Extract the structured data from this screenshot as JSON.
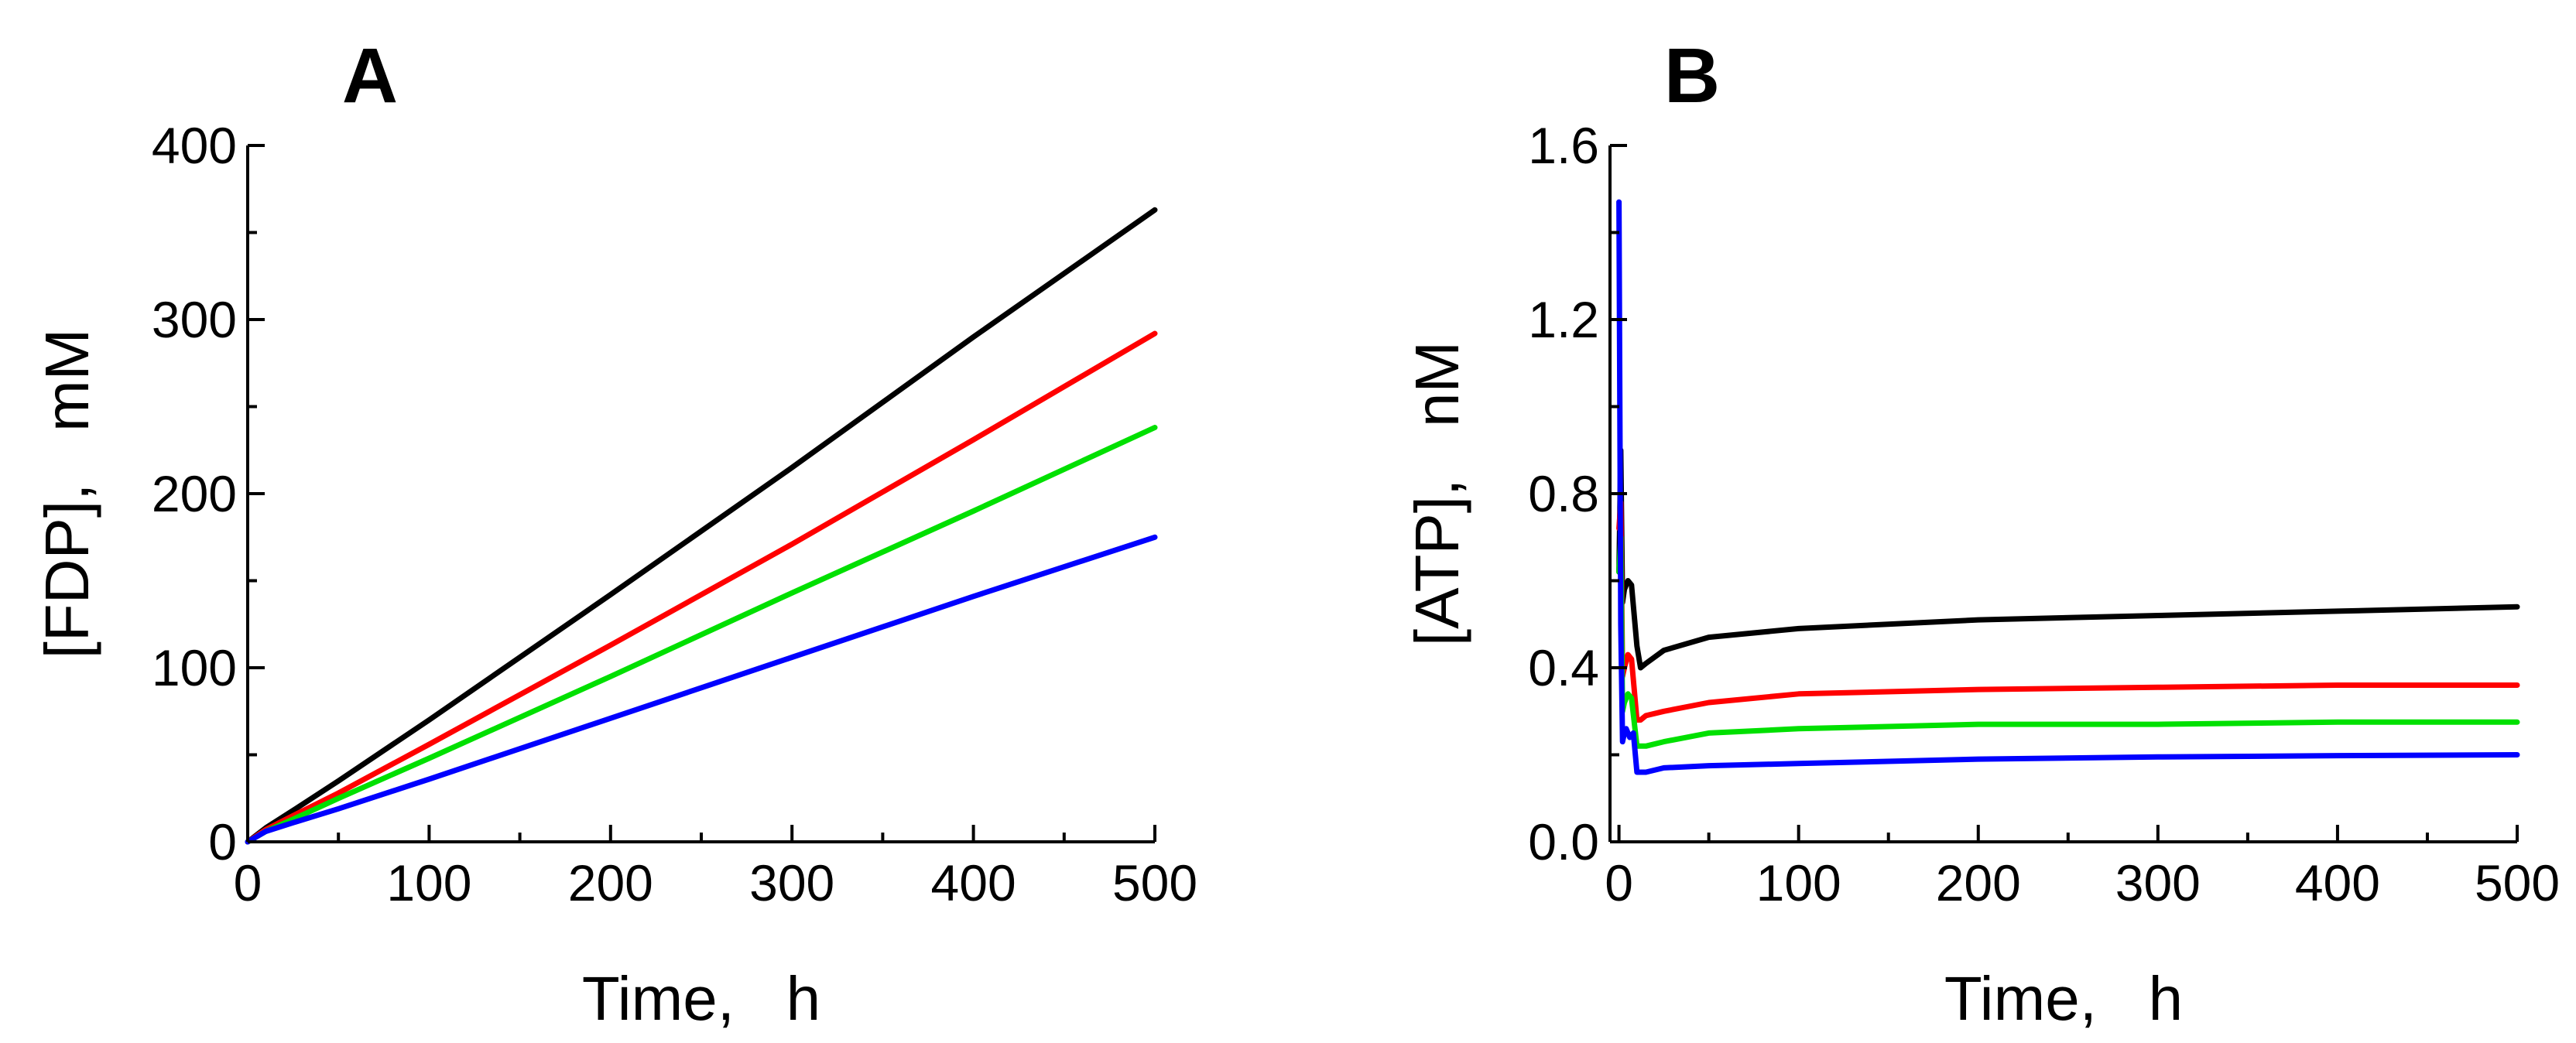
{
  "chart_data": [
    {
      "type": "line",
      "panel_label": "A",
      "xlabel": "Time,   h",
      "ylabel": "[FDP],   mM",
      "xlim": [
        0,
        500
      ],
      "ylim": [
        0,
        400
      ],
      "x_ticks": [
        0,
        100,
        200,
        300,
        400,
        500
      ],
      "x_tick_labels": [
        "0",
        "100",
        "200",
        "300",
        "400",
        "500"
      ],
      "y_ticks": [
        0,
        100,
        200,
        300,
        400
      ],
      "y_tick_labels": [
        "0",
        "100",
        "200",
        "300",
        "400"
      ],
      "grid": false,
      "series": [
        {
          "name": "black",
          "color": "#000000",
          "x": [
            0,
            10,
            25,
            50,
            100,
            200,
            300,
            400,
            500
          ],
          "y": [
            0,
            8,
            18,
            35,
            70,
            142,
            215,
            290,
            363
          ]
        },
        {
          "name": "red",
          "color": "#ff0000",
          "x": [
            0,
            10,
            25,
            50,
            100,
            200,
            300,
            400,
            500
          ],
          "y": [
            0,
            7,
            15,
            28,
            56,
            113,
            171,
            231,
            292
          ]
        },
        {
          "name": "green",
          "color": "#00e000",
          "x": [
            0,
            10,
            25,
            50,
            100,
            200,
            300,
            400,
            500
          ],
          "y": [
            0,
            6,
            13,
            25,
            48,
            95,
            143,
            190,
            238
          ]
        },
        {
          "name": "blue",
          "color": "#0000ff",
          "x": [
            0,
            10,
            25,
            50,
            100,
            200,
            300,
            400,
            500
          ],
          "y": [
            0,
            6,
            11,
            19,
            36,
            71,
            106,
            141,
            175
          ]
        }
      ]
    },
    {
      "type": "line",
      "panel_label": "B",
      "xlabel": "Time,   h",
      "ylabel": "[ATP],   nM",
      "xlim": [
        -5,
        500
      ],
      "ylim": [
        0,
        1.6
      ],
      "x_ticks": [
        0,
        100,
        200,
        300,
        400,
        500
      ],
      "x_tick_labels": [
        "0",
        "100",
        "200",
        "300",
        "400",
        "500"
      ],
      "y_ticks": [
        0,
        0.4,
        0.8,
        1.2,
        1.6
      ],
      "y_tick_labels": [
        "0.0",
        "0.4",
        "0.8",
        "1.2",
        "1.6"
      ],
      "grid": false,
      "series": [
        {
          "name": "black",
          "color": "#000000",
          "x": [
            0,
            1,
            2,
            3,
            5,
            7,
            10,
            12,
            15,
            25,
            50,
            100,
            200,
            300,
            400,
            500
          ],
          "y": [
            0.62,
            0.9,
            0.55,
            0.58,
            0.6,
            0.59,
            0.45,
            0.4,
            0.41,
            0.44,
            0.47,
            0.49,
            0.51,
            0.52,
            0.53,
            0.54
          ]
        },
        {
          "name": "red",
          "color": "#ff0000",
          "x": [
            0,
            1,
            2,
            3,
            5,
            7,
            10,
            12,
            15,
            25,
            50,
            100,
            200,
            300,
            400,
            500
          ],
          "y": [
            0.72,
            0.78,
            0.38,
            0.4,
            0.43,
            0.42,
            0.28,
            0.28,
            0.29,
            0.3,
            0.32,
            0.34,
            0.35,
            0.355,
            0.36,
            0.36
          ]
        },
        {
          "name": "green",
          "color": "#00e000",
          "x": [
            0,
            1,
            2,
            3,
            5,
            7,
            10,
            12,
            15,
            25,
            50,
            100,
            200,
            300,
            400,
            500
          ],
          "y": [
            0.62,
            0.7,
            0.3,
            0.32,
            0.34,
            0.33,
            0.22,
            0.22,
            0.22,
            0.23,
            0.25,
            0.26,
            0.27,
            0.27,
            0.275,
            0.275
          ]
        },
        {
          "name": "blue",
          "color": "#0000ff",
          "x": [
            0,
            1,
            2,
            3,
            4,
            6,
            8,
            10,
            15,
            25,
            50,
            100,
            200,
            300,
            400,
            500
          ],
          "y": [
            1.47,
            0.5,
            0.23,
            0.25,
            0.26,
            0.24,
            0.25,
            0.16,
            0.16,
            0.17,
            0.175,
            0.18,
            0.19,
            0.195,
            0.198,
            0.2
          ]
        }
      ]
    }
  ]
}
